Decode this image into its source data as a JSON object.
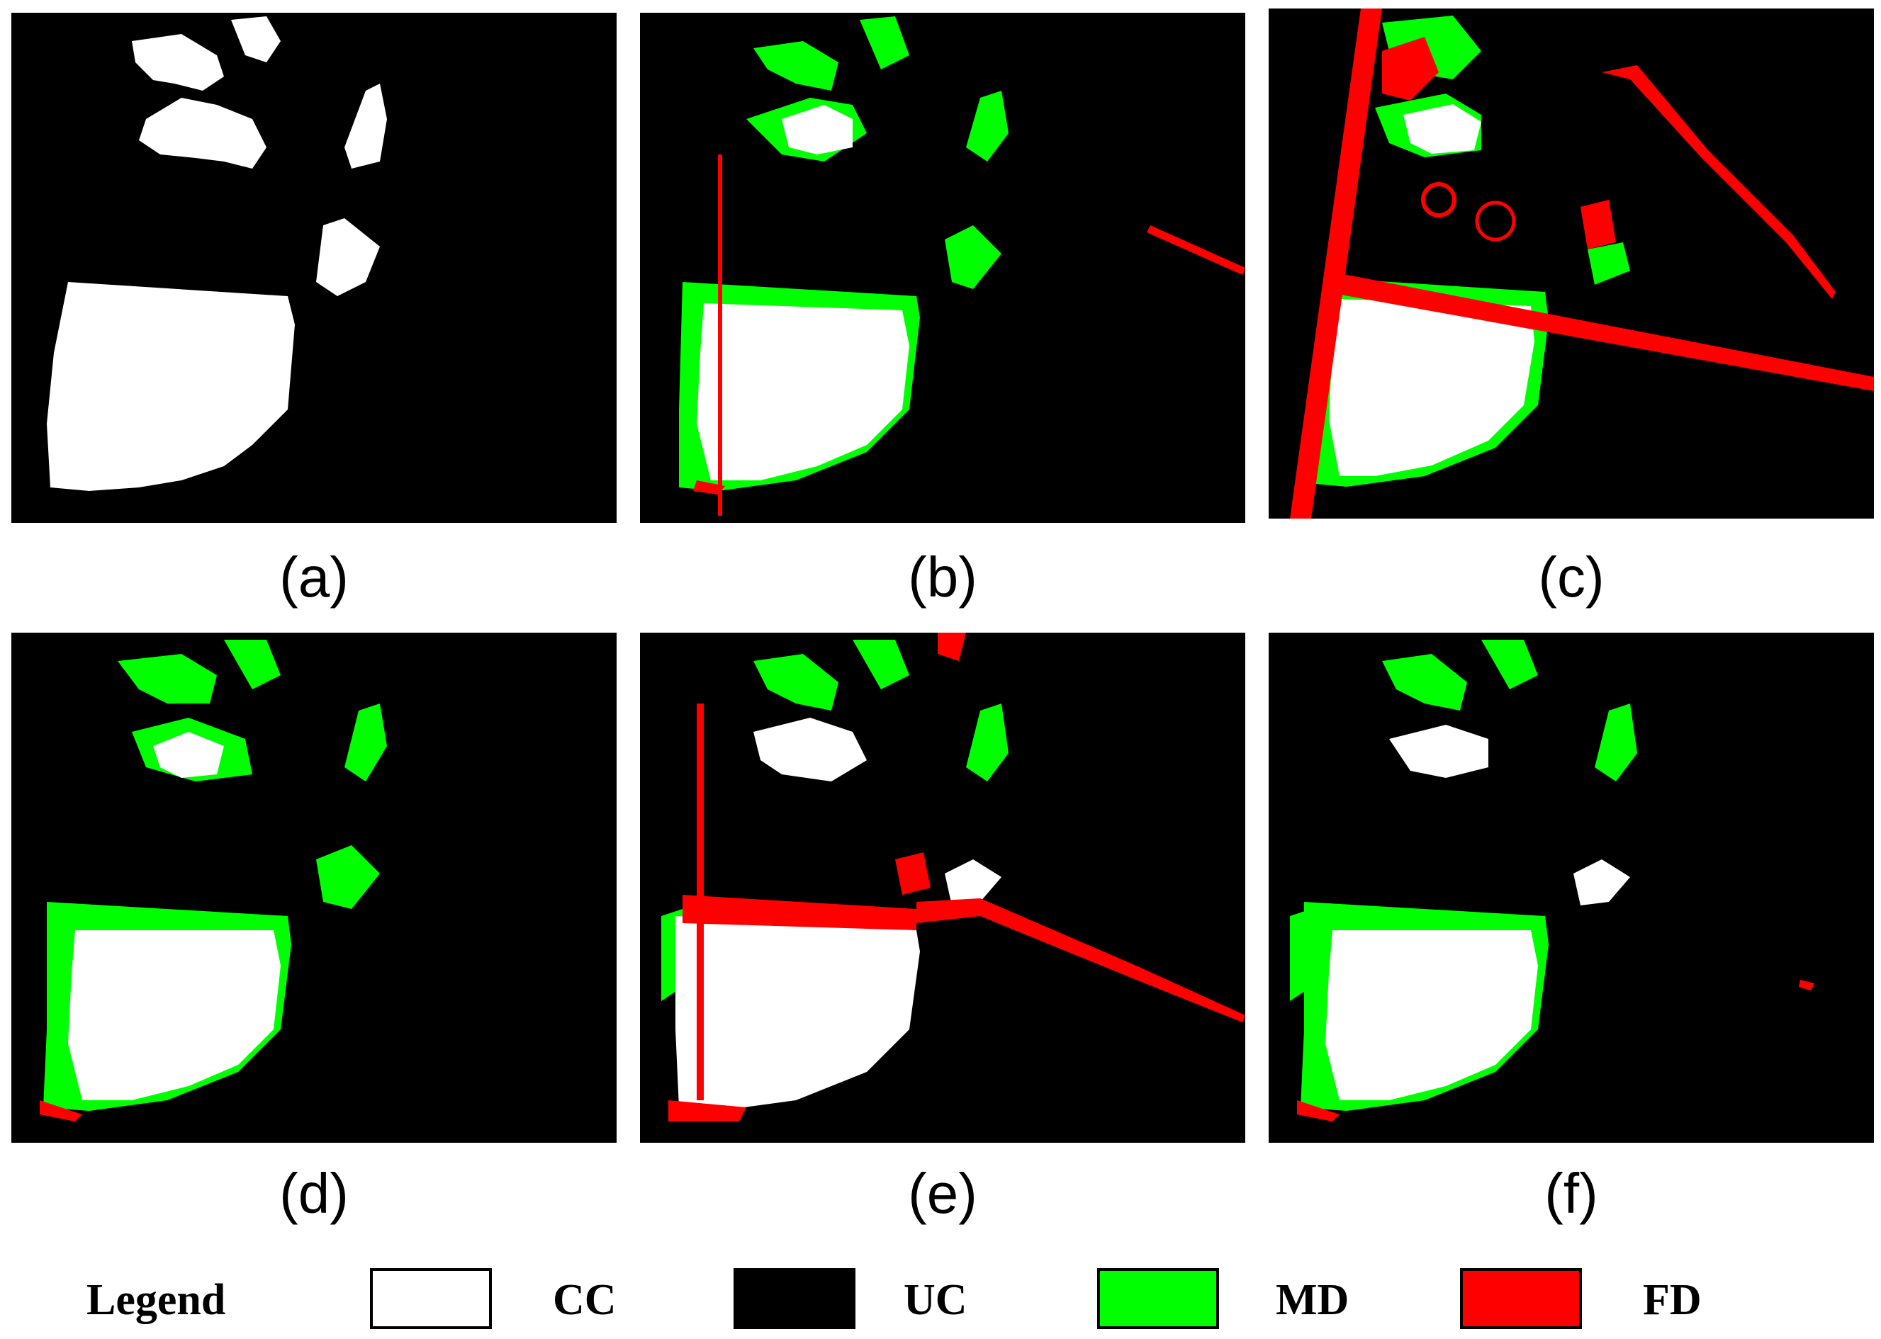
{
  "panels": [
    {
      "id": "a",
      "label": "(a)"
    },
    {
      "id": "b",
      "label": "(b)"
    },
    {
      "id": "c",
      "label": "(c)"
    },
    {
      "id": "d",
      "label": "(d)"
    },
    {
      "id": "e",
      "label": "(e)"
    },
    {
      "id": "f",
      "label": "(f)"
    }
  ],
  "legend": {
    "title": "Legend",
    "items": [
      {
        "label": "CC",
        "color": "#ffffff"
      },
      {
        "label": "UC",
        "color": "#000000"
      },
      {
        "label": "MD",
        "color": "#00ff00"
      },
      {
        "label": "FD",
        "color": "#ff0000"
      }
    ]
  }
}
